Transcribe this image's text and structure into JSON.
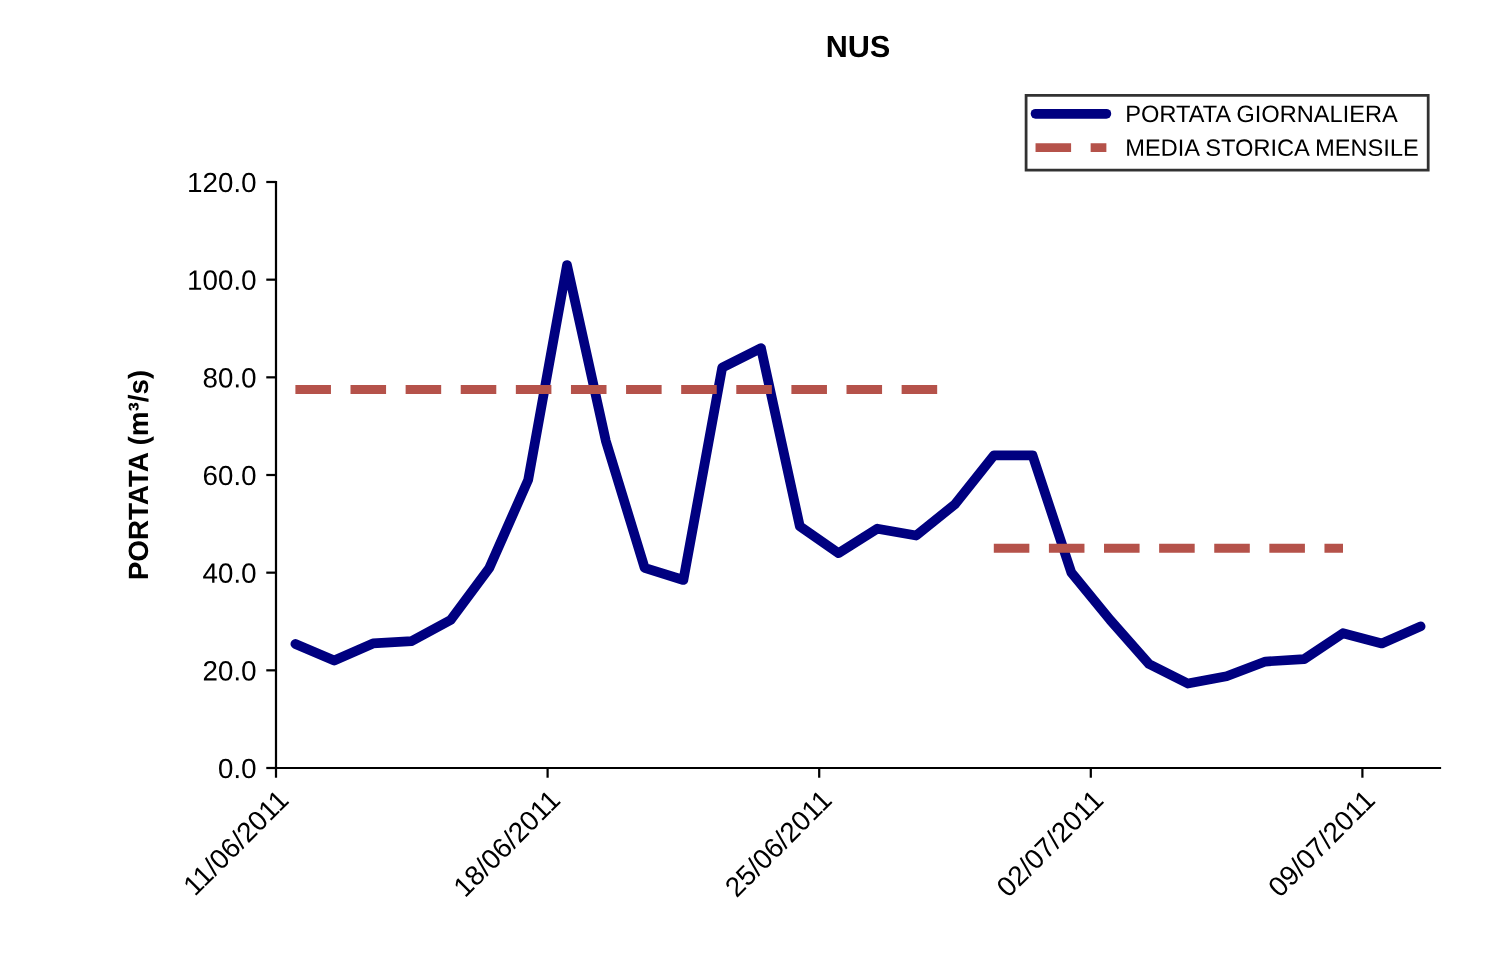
{
  "chart_data": {
    "type": "line",
    "title": "NUS",
    "ylabel": "PORTATA (m³/s)",
    "x": [
      "2011-06-11T12:00",
      "2011-06-12T12:00",
      "2011-06-13T12:00",
      "2011-06-14T12:00",
      "2011-06-15T12:00",
      "2011-06-16T12:00",
      "2011-06-17T12:00",
      "2011-06-18T12:00",
      "2011-06-19T12:00",
      "2011-06-20T12:00",
      "2011-06-21T12:00",
      "2011-06-22T12:00",
      "2011-06-23T12:00",
      "2011-06-24T12:00",
      "2011-06-25T12:00",
      "2011-06-26T12:00",
      "2011-06-27T12:00",
      "2011-06-28T12:00",
      "2011-06-29T12:00",
      "2011-06-30T12:00",
      "2011-07-01T12:00",
      "2011-07-02T12:00",
      "2011-07-03T12:00",
      "2011-07-04T12:00",
      "2011-07-05T12:00",
      "2011-07-06T12:00",
      "2011-07-07T12:00",
      "2011-07-08T12:00",
      "2011-07-09T12:00",
      "2011-07-10T12:00"
    ],
    "series": [
      {
        "name": "PORTATA GIORNALIERA",
        "color": "#000080",
        "line_style": "solid",
        "values": [
          25.4,
          22,
          25.5,
          26,
          30.3,
          41,
          59,
          103,
          67,
          41,
          38.5,
          82,
          86,
          49.5,
          44,
          49,
          47.6,
          54,
          64,
          64,
          40,
          30.3,
          21.3,
          17.3,
          18.8,
          21.8,
          22.3,
          27.6,
          25.5,
          29
        ]
      },
      {
        "name": "MEDIA STORICA MENSILE",
        "color": "#b5524a",
        "line_style": "dashed",
        "x": [
          "2011-06-11T12:00",
          "2011-06-28T12:00",
          "2011-06-29T00:00",
          "2011-06-29T12:00",
          "2011-07-08T12:00"
        ],
        "values": [
          77.5,
          77.5,
          null,
          45,
          45
        ]
      }
    ],
    "xlim": [
      "2011-06-11",
      "2011-07-11"
    ],
    "xticks": [
      {
        "value": "2011-06-11",
        "label": "11/06/2011"
      },
      {
        "value": "2011-06-18",
        "label": "18/06/2011"
      },
      {
        "value": "2011-06-25",
        "label": "25/06/2011"
      },
      {
        "value": "2011-07-02",
        "label": "02/07/2011"
      },
      {
        "value": "2011-07-09",
        "label": "09/07/2011"
      }
    ],
    "ylim": [
      0,
      120
    ],
    "yticks": [
      {
        "value": 0,
        "label": "0.0"
      },
      {
        "value": 20,
        "label": "20.0"
      },
      {
        "value": 40,
        "label": "40.0"
      },
      {
        "value": 60,
        "label": "60.0"
      },
      {
        "value": 80,
        "label": "80.0"
      },
      {
        "value": 100,
        "label": "100.0"
      },
      {
        "value": 120,
        "label": "120.0"
      }
    ],
    "legend": "top right",
    "grid": false,
    "marker": "none"
  }
}
